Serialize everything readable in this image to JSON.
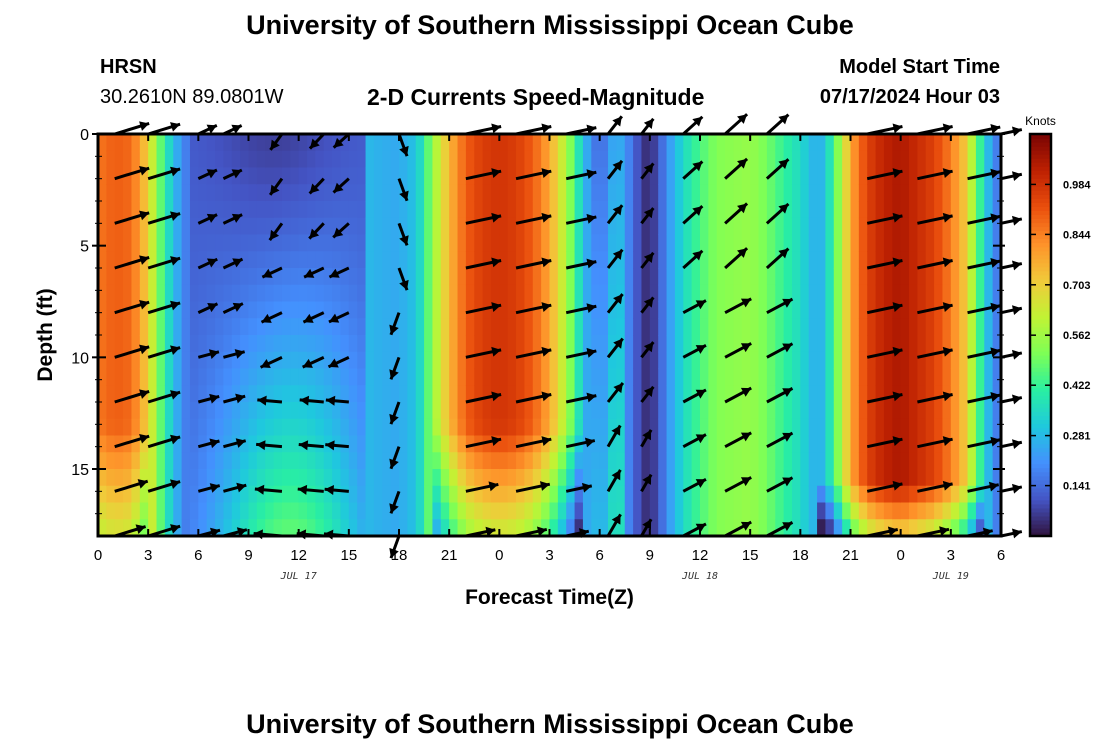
{
  "header": {
    "title": "University of Southern Mississippi Ocean Cube",
    "station": "HRSN",
    "coordinates": "30.2610N  89.0801W",
    "plot_title": "2-D Currents Speed-Magnitude",
    "model_start_label": "Model Start Time",
    "model_start_value": "07/17/2024 Hour 03"
  },
  "footer": {
    "title": "University of Southern Mississippi Ocean Cube"
  },
  "colors": {
    "scale": [
      "#30123b",
      "#4454c4",
      "#4490fe",
      "#1fc8de",
      "#29efa2",
      "#7dff56",
      "#c1f334",
      "#f1ca3a",
      "#fe922a",
      "#ea4f0d",
      "#be2102",
      "#7a0403"
    ],
    "arrow": "#000000",
    "frame": "#000000"
  },
  "chart_data": {
    "type": "heatmap",
    "title": "2-D Currents Speed-Magnitude",
    "xlabel": "Forecast Time(Z)",
    "ylabel": "Depth (ft)",
    "x_tick_labels": [
      "0",
      "3",
      "6",
      "9",
      "12",
      "15",
      "18",
      "21",
      "0",
      "3",
      "6",
      "9",
      "12",
      "15",
      "18",
      "21",
      "0",
      "3",
      "6"
    ],
    "date_labels": [
      {
        "label": "JUL 17",
        "hour": 12
      },
      {
        "label": "JUL 18",
        "hour": 36
      },
      {
        "label": "JUL 19",
        "hour": 51
      }
    ],
    "x_range_hours": [
      0,
      54
    ],
    "y_ticks": [
      0,
      5,
      10,
      15
    ],
    "y_range_ft": [
      0,
      18
    ],
    "colorbar": {
      "unit": "Knots",
      "range": [
        0,
        1.125
      ],
      "tick_values": [
        0.141,
        0.281,
        0.422,
        0.562,
        0.703,
        0.844,
        0.984
      ],
      "tick_labels": [
        "0.141",
        "0.281",
        "0.422",
        "0.562",
        "0.703",
        "0.844",
        "0.984"
      ]
    },
    "speed_profile_hours": [
      0,
      1,
      2,
      3,
      3.5,
      4,
      4.5,
      5,
      5.5,
      6,
      9,
      12,
      15,
      15.5,
      16,
      17,
      18,
      19,
      19.5,
      20,
      21,
      22,
      23,
      24,
      25,
      26,
      27,
      28,
      28.5,
      29,
      29.5,
      30,
      30.5,
      31,
      32,
      32.5,
      33,
      33.5,
      34,
      35,
      36,
      37,
      39,
      40,
      41,
      42,
      43,
      43.5,
      44,
      44.5,
      45,
      46,
      47,
      48,
      49,
      50,
      51,
      52,
      52.5,
      53,
      53.5,
      54
    ],
    "speed_profile_knots": [
      0.86,
      0.9,
      0.88,
      0.7,
      0.55,
      0.4,
      0.3,
      0.2,
      0.15,
      0.12,
      0.12,
      0.13,
      0.14,
      0.2,
      0.28,
      0.26,
      0.25,
      0.3,
      0.4,
      0.55,
      0.75,
      0.9,
      0.96,
      0.98,
      0.96,
      0.9,
      0.78,
      0.58,
      0.45,
      0.3,
      0.2,
      0.12,
      0.2,
      0.28,
      0.15,
      0.06,
      0.04,
      0.1,
      0.2,
      0.35,
      0.45,
      0.52,
      0.55,
      0.5,
      0.42,
      0.35,
      0.25,
      0.3,
      0.45,
      0.6,
      0.78,
      0.95,
      1.02,
      1.05,
      1.0,
      0.95,
      0.85,
      0.7,
      0.5,
      0.35,
      0.2,
      0.15
    ],
    "vectors": {
      "hours": [
        1,
        3,
        6,
        7.5,
        11,
        13.5,
        15,
        18,
        22,
        25,
        28,
        30.5,
        32.5,
        35,
        37.5,
        40,
        46,
        49,
        52,
        54
      ],
      "depths_ft": [
        0,
        2,
        4,
        6,
        8,
        10,
        12,
        14,
        16,
        18
      ],
      "note": "arrow direction in compass degrees (0 = north)"
    }
  }
}
